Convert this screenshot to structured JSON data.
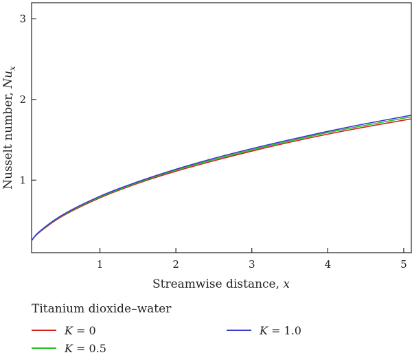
{
  "chart_data": {
    "type": "line",
    "xlabel": "Streamwise distance, x",
    "ylabel": "Nusselt number, Nu_x",
    "xlim": [
      0.1,
      5.1
    ],
    "ylim": [
      0.1,
      3.2
    ],
    "xticks": [
      1,
      2,
      3,
      4,
      5
    ],
    "yticks": [
      1,
      2,
      3
    ],
    "grid": false,
    "legend_title": "Titanium dioxide–water",
    "legend_position": "bottom",
    "series": [
      {
        "name": "K = 0",
        "param": "K",
        "param_value": "0",
        "color": "#d62020",
        "x": [
          0.1,
          0.2,
          0.5,
          1.0,
          1.5,
          2.0,
          2.5,
          3.0,
          3.5,
          4.0,
          4.5,
          5.1
        ],
        "y": [
          0.25,
          0.35,
          0.55,
          0.78,
          0.96,
          1.11,
          1.24,
          1.36,
          1.47,
          1.57,
          1.66,
          1.76
        ]
      },
      {
        "name": "K = 0.5",
        "param": "K",
        "param_value": "0.5",
        "color": "#22c022",
        "x": [
          0.1,
          0.2,
          0.5,
          1.0,
          1.5,
          2.0,
          2.5,
          3.0,
          3.5,
          4.0,
          4.5,
          5.1
        ],
        "y": [
          0.25,
          0.355,
          0.56,
          0.79,
          0.97,
          1.125,
          1.255,
          1.375,
          1.485,
          1.59,
          1.68,
          1.785
        ]
      },
      {
        "name": "K = 1.0",
        "param": "K",
        "param_value": "1.0",
        "color": "#3a3ad0",
        "x": [
          0.1,
          0.2,
          0.5,
          1.0,
          1.5,
          2.0,
          2.5,
          3.0,
          3.5,
          4.0,
          4.5,
          5.1
        ],
        "y": [
          0.25,
          0.36,
          0.565,
          0.8,
          0.98,
          1.135,
          1.27,
          1.39,
          1.5,
          1.605,
          1.7,
          1.805
        ]
      }
    ]
  }
}
